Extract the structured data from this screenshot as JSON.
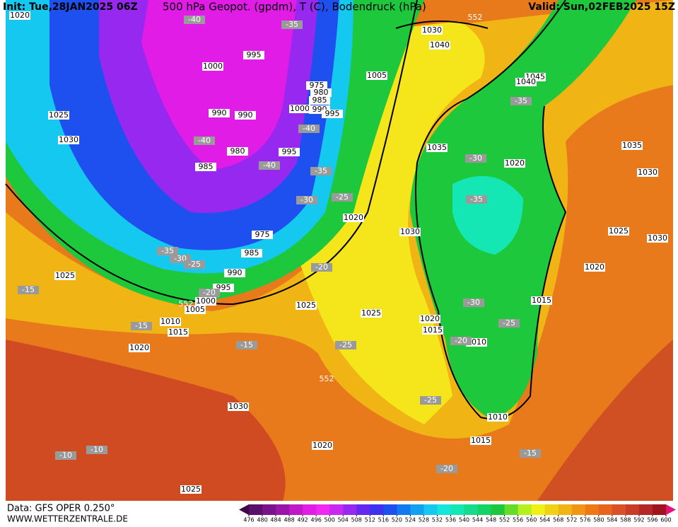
{
  "header": {
    "init": "Init: Tue,28JAN2025 06Z",
    "title": "500 hPa Geopot. (gpdm), T (C), Bodendruck (hPa)",
    "valid": "Valid: Sun,02FEB2025 15Z"
  },
  "map": {
    "isobar_labels": [
      1020,
      1025,
      1030,
      1025,
      1020,
      1030,
      1025,
      1020,
      1025,
      1025,
      1020,
      1030,
      1005,
      1030,
      1040,
      1045,
      1040,
      1020,
      1035,
      1035,
      1030,
      1025,
      1030,
      1020,
      1015,
      1020,
      1015,
      1010,
      1010,
      1015,
      1000,
      995,
      990,
      990,
      980,
      985,
      975,
      985,
      990,
      995,
      1000,
      1005,
      1010,
      1015,
      975,
      980,
      985,
      1000,
      990,
      995,
      995
    ],
    "temperature_labels": [
      -40,
      -35,
      -40,
      -40,
      -40,
      -35,
      -30,
      -25,
      -35,
      -30,
      -25,
      -20,
      -15,
      -15,
      -15,
      -20,
      -25,
      -25,
      -20,
      -15,
      -10,
      -10,
      -35,
      -30,
      -35,
      -30,
      -25,
      -20
    ],
    "geopotential_labels": [
      552,
      552,
      552
    ]
  },
  "colorbar": {
    "ticks": [
      476,
      480,
      484,
      488,
      492,
      496,
      500,
      504,
      508,
      512,
      516,
      520,
      524,
      528,
      532,
      536,
      540,
      544,
      548,
      552,
      556,
      560,
      564,
      568,
      572,
      576,
      580,
      584,
      588,
      592,
      596,
      600
    ],
    "colors": [
      "#3c0a49",
      "#5a0f6a",
      "#7a128a",
      "#9a14a9",
      "#c018c8",
      "#e01ce6",
      "#f028f0",
      "#c828f0",
      "#9628f0",
      "#6428f0",
      "#3c32f0",
      "#1e50f0",
      "#1478f0",
      "#14a0f0",
      "#14c8f0",
      "#14e6dc",
      "#14e6b4",
      "#14dc8c",
      "#14d264",
      "#1ec83c",
      "#64dc28",
      "#b4f01e",
      "#f0f014",
      "#f0d214",
      "#f0b414",
      "#f09614",
      "#f07814",
      "#e6641e",
      "#dc5028",
      "#c83c28",
      "#b42828",
      "#a0141e",
      "#e6147a"
    ]
  },
  "footer": {
    "data": "Data: GFS OPER 0.250°",
    "site": "WWW.WETTERZENTRALE.DE"
  }
}
